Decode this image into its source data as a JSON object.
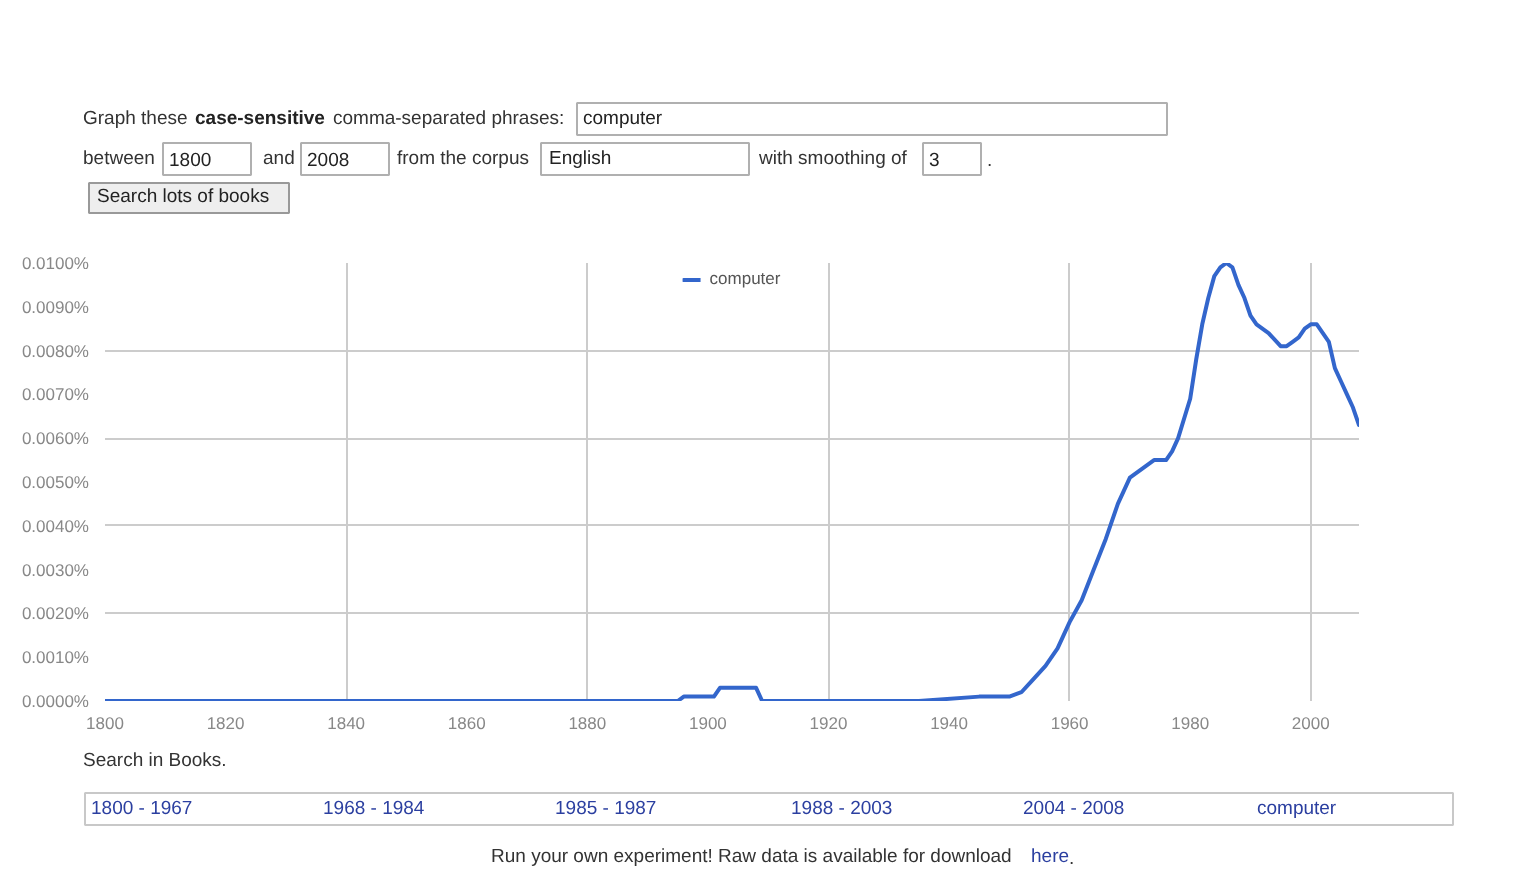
{
  "chart_data": {
    "type": "line",
    "x": [
      1800,
      1895,
      1896,
      1901,
      1902,
      1908,
      1909,
      1935,
      1945,
      1950,
      1952,
      1954,
      1956,
      1958,
      1960,
      1962,
      1964,
      1966,
      1968,
      1970,
      1972,
      1974,
      1976,
      1977,
      1978,
      1980,
      1981,
      1982,
      1983,
      1984,
      1985,
      1986,
      1987,
      1988,
      1989,
      1990,
      1991,
      1993,
      1995,
      1996,
      1997,
      1998,
      1999,
      2000,
      2001,
      2002,
      2003,
      2004,
      2005,
      2006,
      2007,
      2008
    ],
    "series": [
      {
        "name": "computer",
        "color": "#3366cc",
        "values": [
          0,
          0,
          0.0001,
          0.0001,
          0.0003,
          0.0003,
          0,
          0,
          0.0001,
          0.0001,
          0.0002,
          0.0005,
          0.0008,
          0.0012,
          0.0018,
          0.0023,
          0.003,
          0.0037,
          0.0045,
          0.0051,
          0.0053,
          0.0055,
          0.0055,
          0.0057,
          0.006,
          0.0069,
          0.0078,
          0.0086,
          0.0092,
          0.0097,
          0.0099,
          0.01,
          0.0099,
          0.0095,
          0.0092,
          0.0088,
          0.0086,
          0.0084,
          0.0081,
          0.0081,
          0.0082,
          0.0083,
          0.0085,
          0.0086,
          0.0086,
          0.0084,
          0.0082,
          0.0076,
          0.0073,
          0.007,
          0.0067,
          0.0063
        ]
      }
    ],
    "xlim": [
      1800,
      2008
    ],
    "ylim": [
      0,
      0.01
    ],
    "xticks": [
      1800,
      1820,
      1840,
      1860,
      1880,
      1900,
      1920,
      1940,
      1960,
      1980,
      2000
    ],
    "yticks": [
      {
        "value": 0,
        "label": "0.0000%"
      },
      {
        "value": 0.001,
        "label": "0.0010%"
      },
      {
        "value": 0.002,
        "label": "0.0020%"
      },
      {
        "value": 0.003,
        "label": "0.0030%"
      },
      {
        "value": 0.004,
        "label": "0.0040%"
      },
      {
        "value": 0.005,
        "label": "0.0050%"
      },
      {
        "value": 0.006,
        "label": "0.0060%"
      },
      {
        "value": 0.007,
        "label": "0.0070%"
      },
      {
        "value": 0.008,
        "label": "0.0080%"
      },
      {
        "value": 0.009,
        "label": "0.0090%"
      },
      {
        "value": 0.01,
        "label": "0.0100%"
      }
    ],
    "grid": true,
    "legend": "top",
    "annotations": [
      "Graph these",
      "case-sensitive",
      "comma-separated phrases:",
      "computer",
      "between",
      "1800",
      "and",
      "2008",
      "from the corpus",
      "English",
      "with smoothing of",
      "3",
      ".",
      "Search lots of books",
      "Search in Books.",
      "1800 - 1967",
      "1968 - 1984",
      "1985 - 1987",
      "1988 - 2003",
      "2004 - 2008",
      "computer",
      "Run your own experiment! Raw data is available for download",
      "here",
      "."
    ]
  }
}
